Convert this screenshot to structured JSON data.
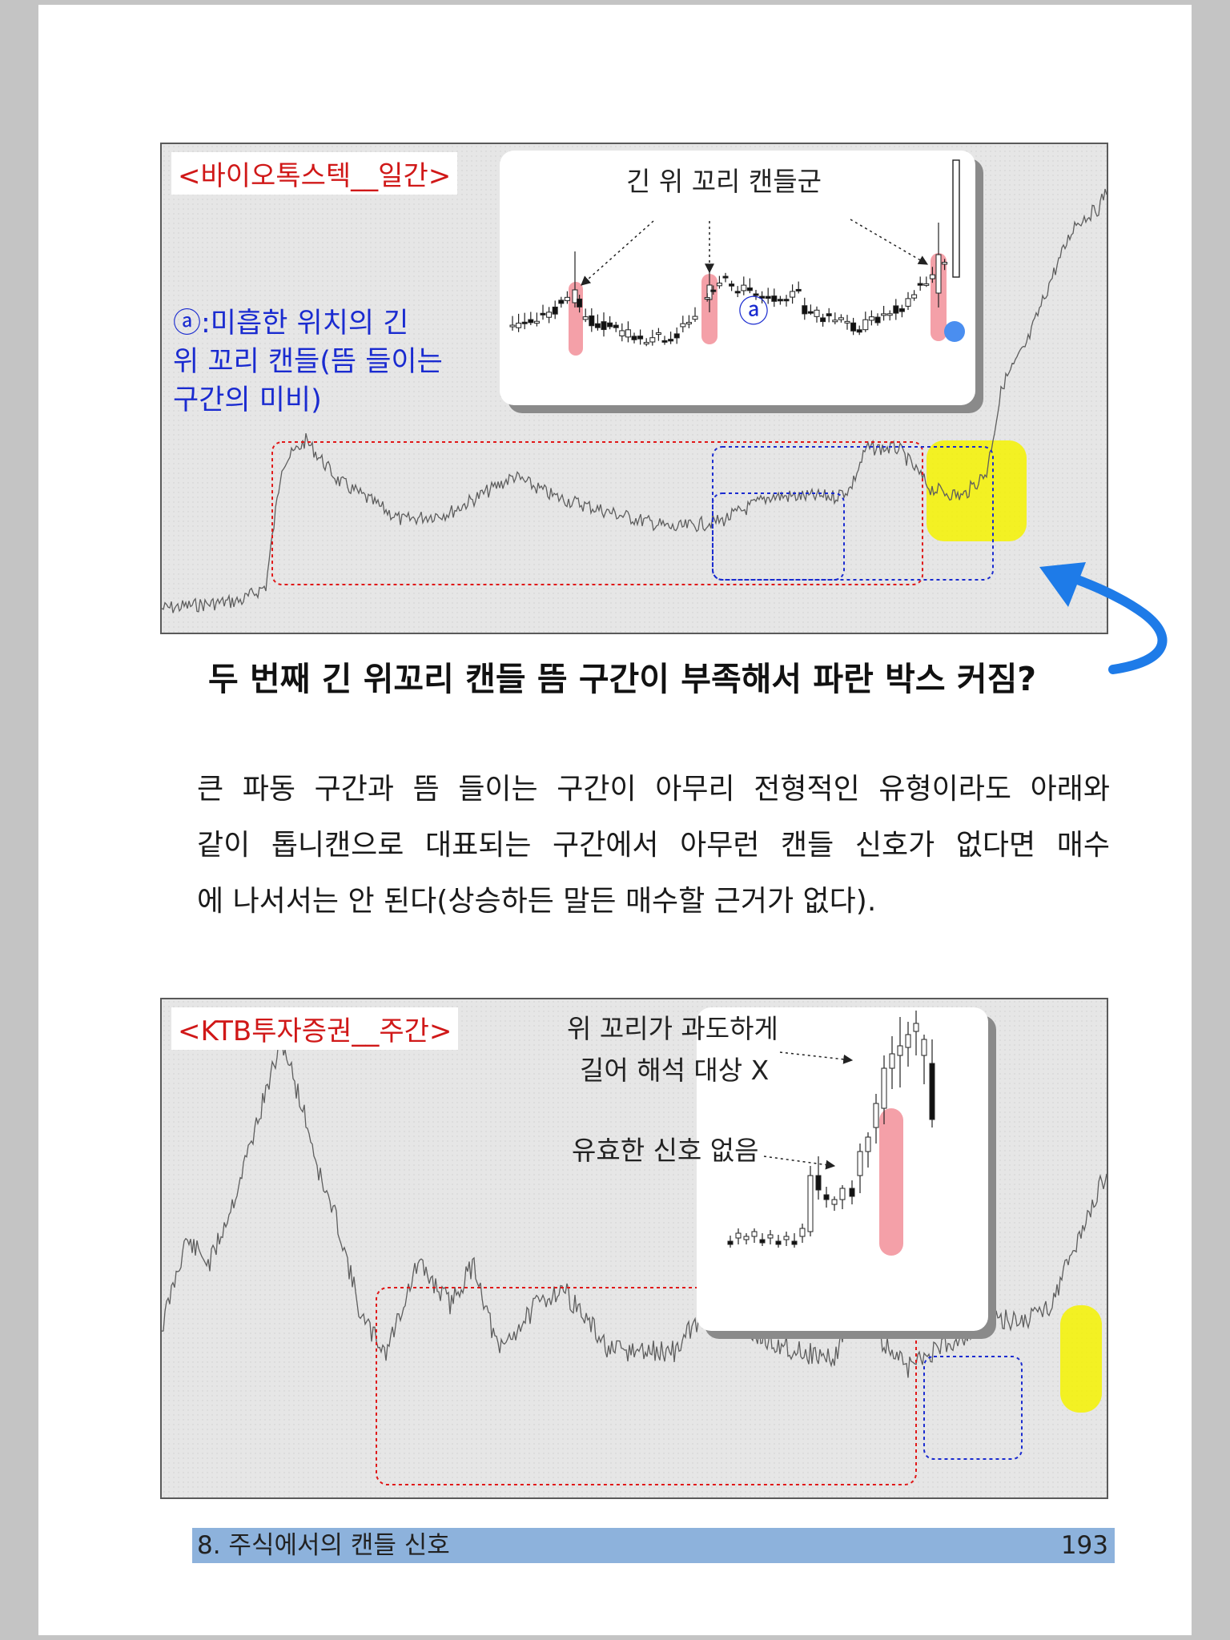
{
  "figure1": {
    "title": "<바이오톡스텍__일간>",
    "inset_label": "긴 위 꼬리 캔들군",
    "marker": "ⓐ",
    "note_lines": [
      "ⓐ:미흡한 위치의 긴",
      "위 꼬리 캔들(뜸 들이는",
      "구간의 미비)"
    ]
  },
  "headline": "두 번째 긴 위꼬리 캔들 뜸 구간이 부족해서 파란 박스 커짐?",
  "paragraph": {
    "lines": [
      [
        "큰",
        "파동",
        "구간과",
        "뜸",
        "들이는",
        "구간이",
        "아무리",
        "전형적인",
        "유형이라도",
        "아래와"
      ],
      [
        "같이",
        "톱니캔으로",
        "대표되는",
        "구간에서",
        "아무런",
        "캔들",
        "신호가",
        "없다면",
        "매수"
      ],
      [
        "에 나서서는 안 된다(상승하든 말든 매수할 근거가 없다)."
      ]
    ]
  },
  "figure2": {
    "title": "<KTB투자증권__주간>",
    "anno1_line1": "위 꼬리가 과도하게",
    "anno1_line2": "길어 해석 대상 X",
    "anno2": "유효한 신호 없음"
  },
  "footer": {
    "chapter": "8. 주식에서의 캔들 신호",
    "page": "193"
  },
  "colors": {
    "title_red": "#d01818",
    "note_blue": "#1a2bd0",
    "highlight_yellow": "#f4f200",
    "highlight_pink": "#f4a0a8",
    "arrow_blue": "#1e7be8",
    "footer_bar": "#8db2dc"
  }
}
